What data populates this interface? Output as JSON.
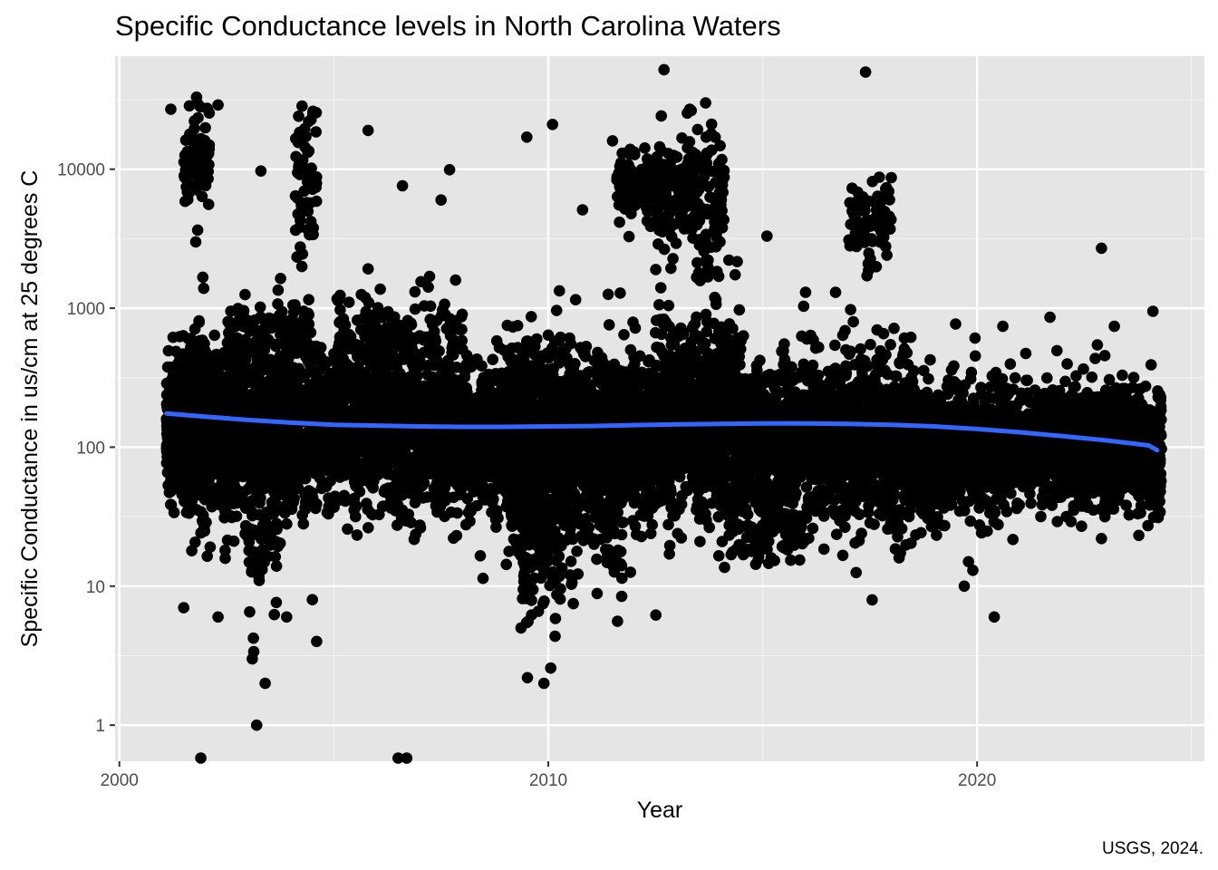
{
  "chart_data": {
    "type": "scatter",
    "title": "Specific Conductance levels in North Carolina Waters",
    "xlabel": "Year",
    "ylabel": "Specific Conductance in us/cm at 25 degrees C",
    "caption": "USGS, 2024.",
    "xlim": [
      1999.9,
      2025.3
    ],
    "ylim": [
      0.55,
      65000
    ],
    "y_scale": "log10",
    "x_ticks": [
      2000,
      2010,
      2020
    ],
    "x_tick_labels": [
      "2000",
      "2010",
      "2020"
    ],
    "y_ticks": [
      1,
      10,
      100,
      1000,
      10000
    ],
    "y_tick_labels": [
      "1",
      "10",
      "100",
      "1000",
      "10000"
    ],
    "grid": true,
    "legend": "none",
    "point_color": "#000000",
    "trend_color": "#3366FF",
    "panel_background": "#E5E5E5",
    "trend": {
      "method": "smooth",
      "x": [
        2001.0,
        2002.0,
        2003.0,
        2004.0,
        2005.0,
        2006.0,
        2007.0,
        2008.0,
        2009.0,
        2010.0,
        2011.0,
        2012.0,
        2013.0,
        2014.0,
        2015.0,
        2016.0,
        2017.0,
        2018.0,
        2019.0,
        2020.0,
        2021.0,
        2022.0,
        2023.0,
        2024.0,
        2025.0
      ],
      "y": [
        175,
        166,
        157,
        150,
        145,
        143,
        141,
        140,
        140,
        141,
        142,
        144,
        146,
        147,
        148,
        148,
        147,
        145,
        141,
        135,
        128,
        120,
        112,
        103,
        95
      ]
    },
    "clusters": [
      {
        "x": [
          2001.1,
          2001.6
        ],
        "median": 130,
        "spread": 0.22,
        "n": 500
      },
      {
        "x": [
          2001.6,
          2002.0
        ],
        "median": 150,
        "spread": 0.3,
        "n": 350
      },
      {
        "x": [
          2002.0,
          2004.0
        ],
        "median": 130,
        "spread": 0.3,
        "n": 900
      },
      {
        "x": [
          2004.0,
          2007.0
        ],
        "median": 135,
        "spread": 0.28,
        "n": 1100
      },
      {
        "x": [
          2007.0,
          2009.0
        ],
        "median": 120,
        "spread": 0.25,
        "n": 700
      },
      {
        "x": [
          2009.0,
          2010.5
        ],
        "median": 110,
        "spread": 0.35,
        "n": 700
      },
      {
        "x": [
          2010.5,
          2012.5
        ],
        "median": 120,
        "spread": 0.28,
        "n": 800
      },
      {
        "x": [
          2012.5,
          2014.5
        ],
        "median": 160,
        "spread": 0.35,
        "n": 900
      },
      {
        "x": [
          2014.5,
          2016.5
        ],
        "median": 110,
        "spread": 0.28,
        "n": 700
      },
      {
        "x": [
          2016.5,
          2018.5
        ],
        "median": 110,
        "spread": 0.3,
        "n": 700
      },
      {
        "x": [
          2018.5,
          2020.5
        ],
        "median": 95,
        "spread": 0.25,
        "n": 600
      },
      {
        "x": [
          2020.5,
          2022.5
        ],
        "median": 100,
        "spread": 0.22,
        "n": 600
      },
      {
        "x": [
          2022.5,
          2024.3
        ],
        "median": 100,
        "spread": 0.22,
        "n": 600
      },
      {
        "x": [
          2001.5,
          2002.1
        ],
        "median": 12000,
        "spread": 0.18,
        "n": 80
      },
      {
        "x": [
          2004.1,
          2004.6
        ],
        "median": 8000,
        "spread": 0.3,
        "n": 60
      },
      {
        "x": [
          2011.6,
          2012.6
        ],
        "median": 7000,
        "spread": 0.12,
        "n": 120
      },
      {
        "x": [
          2012.5,
          2014.1
        ],
        "median": 6500,
        "spread": 0.25,
        "n": 200
      },
      {
        "x": [
          2017.0,
          2018.0
        ],
        "median": 4000,
        "spread": 0.15,
        "n": 80
      },
      {
        "x": [
          2002.5,
          2004.5
        ],
        "median": 600,
        "spread": 0.15,
        "n": 150
      },
      {
        "x": [
          2005.0,
          2008.0
        ],
        "median": 600,
        "spread": 0.18,
        "n": 200
      },
      {
        "x": [
          2003.0,
          2003.7
        ],
        "median": 20,
        "spread": 0.25,
        "n": 60
      },
      {
        "x": [
          2009.3,
          2010.3
        ],
        "median": 20,
        "spread": 0.3,
        "n": 120
      },
      {
        "x": [
          2010.5,
          2011.8
        ],
        "median": 25,
        "spread": 0.25,
        "n": 80
      },
      {
        "x": [
          2014.2,
          2016.0
        ],
        "median": 25,
        "spread": 0.12,
        "n": 100
      }
    ],
    "points": [
      {
        "x": 2012.7,
        "y": 52000
      },
      {
        "x": 2017.4,
        "y": 50000
      },
      {
        "x": 2013.3,
        "y": 27000
      },
      {
        "x": 2002.3,
        "y": 29000
      },
      {
        "x": 2001.2,
        "y": 27000
      },
      {
        "x": 2010.1,
        "y": 21000
      },
      {
        "x": 2001.8,
        "y": 33000
      },
      {
        "x": 2005.8,
        "y": 19000
      },
      {
        "x": 2009.5,
        "y": 17000
      },
      {
        "x": 2003.3,
        "y": 9700
      },
      {
        "x": 2007.7,
        "y": 9900
      },
      {
        "x": 2010.8,
        "y": 5100
      },
      {
        "x": 2015.1,
        "y": 3300
      },
      {
        "x": 2022.9,
        "y": 2700
      },
      {
        "x": 2024.1,
        "y": 950
      },
      {
        "x": 2003.1,
        "y": 3
      },
      {
        "x": 2003.4,
        "y": 2
      },
      {
        "x": 2009.9,
        "y": 2
      },
      {
        "x": 2003.2,
        "y": 1
      },
      {
        "x": 2001.9,
        "y": 0.58
      },
      {
        "x": 2006.5,
        "y": 0.58
      },
      {
        "x": 2006.7,
        "y": 0.58
      },
      {
        "x": 2020.4,
        "y": 6
      },
      {
        "x": 2019.7,
        "y": 10
      },
      {
        "x": 2019.8,
        "y": 15
      },
      {
        "x": 2019.9,
        "y": 13
      },
      {
        "x": 2022.9,
        "y": 22
      },
      {
        "x": 2024.2,
        "y": 37
      },
      {
        "x": 2021.7,
        "y": 860
      },
      {
        "x": 2023.2,
        "y": 740
      },
      {
        "x": 2004.6,
        "y": 4
      },
      {
        "x": 2002.3,
        "y": 6
      },
      {
        "x": 2001.5,
        "y": 7
      },
      {
        "x": 2004.5,
        "y": 8
      },
      {
        "x": 2003.9,
        "y": 6
      },
      {
        "x": 2006.6,
        "y": 7600
      },
      {
        "x": 2007.5,
        "y": 6000
      },
      {
        "x": 2011.5,
        "y": 16000
      },
      {
        "x": 2013.8,
        "y": 18000
      },
      {
        "x": 2018.0,
        "y": 8700
      },
      {
        "x": 2016.0,
        "y": 1300
      },
      {
        "x": 2016.7,
        "y": 1300
      },
      {
        "x": 2019.5,
        "y": 770
      },
      {
        "x": 2020.6,
        "y": 740
      },
      {
        "x": 2023.9,
        "y": 48
      }
    ]
  }
}
